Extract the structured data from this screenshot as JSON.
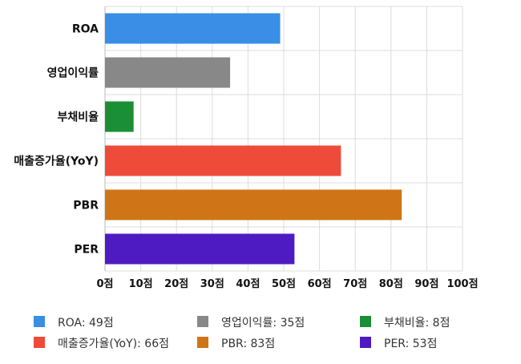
{
  "chart_data": {
    "type": "bar",
    "orientation": "horizontal",
    "categories": [
      "ROA",
      "영업이익률",
      "부채비율",
      "매출증가율(YoY)",
      "PBR",
      "PER"
    ],
    "values": [
      49,
      35,
      8,
      66,
      83,
      53
    ],
    "colors": [
      "#3a8ee6",
      "#888888",
      "#1b8f35",
      "#ef4b3a",
      "#cf7517",
      "#4e1bc2"
    ],
    "xlim": [
      0,
      100
    ],
    "ticks": [
      0,
      10,
      20,
      30,
      40,
      50,
      60,
      70,
      80,
      90,
      100
    ],
    "tick_labels": [
      "0점",
      "10점",
      "20점",
      "30점",
      "40점",
      "50점",
      "60점",
      "70점",
      "80점",
      "90점",
      "100점"
    ],
    "grid": true,
    "legend_position": "bottom",
    "legend": [
      "ROA: 49점",
      "매출증가율(YoY): 66점",
      "영업이익률: 35점",
      "PBR: 83점",
      "부채비율: 8점",
      "PER: 53점"
    ]
  }
}
